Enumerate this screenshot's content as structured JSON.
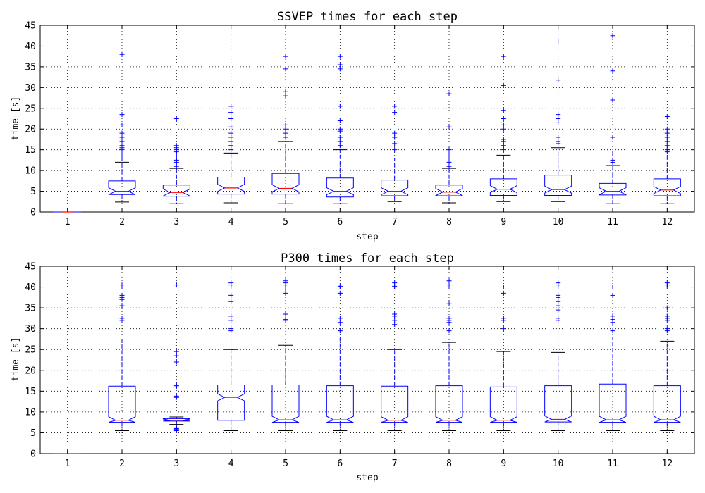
{
  "colors": {
    "box": "#0000ff",
    "median": "#ff0000",
    "whisker": "#0000ff",
    "cap": "#000000",
    "flier": "#0000ff",
    "grid": "#000000"
  },
  "chart_data": [
    {
      "type": "box",
      "title": "SSVEP times for each step",
      "xlabel": "step",
      "ylabel": "time [s]",
      "ylim": [
        0,
        45
      ],
      "yticks": [
        "0",
        "5",
        "10",
        "15",
        "20",
        "25",
        "30",
        "35",
        "40",
        "45"
      ],
      "categories": [
        "1",
        "2",
        "3",
        "4",
        "5",
        "6",
        "7",
        "8",
        "9",
        "10",
        "11",
        "12"
      ],
      "grid": true,
      "notched": true,
      "boxes": [
        {
          "q1": 0,
          "median": 0,
          "q3": 0,
          "whislo": 0,
          "whishi": 0,
          "fliers": []
        },
        {
          "q1": 4.2,
          "median": 5.0,
          "q3": 7.5,
          "whislo": 2.4,
          "whishi": 12.0,
          "fliers": [
            13,
            13.5,
            14,
            15,
            15.5,
            16,
            17,
            18,
            19,
            21,
            23.5,
            38
          ]
        },
        {
          "q1": 3.8,
          "median": 4.7,
          "q3": 6.5,
          "whislo": 2.0,
          "whishi": 10.5,
          "fliers": [
            11,
            12,
            12.5,
            13,
            14,
            14.5,
            15,
            15.5,
            16,
            22.5
          ]
        },
        {
          "q1": 4.3,
          "median": 5.8,
          "q3": 8.4,
          "whislo": 2.2,
          "whishi": 14.2,
          "fliers": [
            15,
            16,
            17,
            18,
            19,
            20.5,
            22.5,
            24,
            25.5
          ]
        },
        {
          "q1": 4.3,
          "median": 5.7,
          "q3": 9.3,
          "whislo": 2.0,
          "whishi": 17.0,
          "fliers": [
            18,
            19,
            20,
            21,
            28,
            29,
            34.5,
            37.5
          ]
        },
        {
          "q1": 3.6,
          "median": 5.0,
          "q3": 8.2,
          "whislo": 2.0,
          "whishi": 15.0,
          "fliers": [
            16,
            17,
            18,
            19.5,
            20,
            22,
            25.5,
            34.5,
            35.5,
            37.5
          ]
        },
        {
          "q1": 3.9,
          "median": 5.0,
          "q3": 7.7,
          "whislo": 2.5,
          "whishi": 13.0,
          "fliers": [
            15,
            16.5,
            18,
            19,
            24,
            25.5
          ]
        },
        {
          "q1": 3.9,
          "median": 4.8,
          "q3": 6.5,
          "whislo": 2.2,
          "whishi": 10.5,
          "fliers": [
            11,
            12,
            13,
            14,
            15,
            20.5,
            28.5
          ]
        },
        {
          "q1": 4.0,
          "median": 5.5,
          "q3": 8.0,
          "whislo": 2.5,
          "whishi": 13.7,
          "fliers": [
            15,
            16,
            17,
            17.5,
            20,
            21,
            22.5,
            24.5,
            30.5,
            37.5
          ]
        },
        {
          "q1": 4.0,
          "median": 5.4,
          "q3": 8.9,
          "whislo": 2.5,
          "whishi": 15.5,
          "fliers": [
            16.5,
            17,
            18,
            21.5,
            22.5,
            23.5,
            31.8,
            41
          ]
        },
        {
          "q1": 4.1,
          "median": 5.0,
          "q3": 6.9,
          "whislo": 2.0,
          "whishi": 11.2,
          "fliers": [
            12,
            12.5,
            14,
            18,
            27,
            34,
            42.5
          ]
        },
        {
          "q1": 3.9,
          "median": 5.3,
          "q3": 8.0,
          "whislo": 2.0,
          "whishi": 14.0,
          "fliers": [
            14.5,
            15,
            16,
            17,
            18,
            19,
            20,
            23
          ]
        }
      ]
    },
    {
      "type": "box",
      "title": "P300 times for each step",
      "xlabel": "step",
      "ylabel": "time [s]",
      "ylim": [
        0,
        45
      ],
      "yticks": [
        "0",
        "5",
        "10",
        "15",
        "20",
        "25",
        "30",
        "35",
        "40",
        "45"
      ],
      "categories": [
        "1",
        "2",
        "3",
        "4",
        "5",
        "6",
        "7",
        "8",
        "9",
        "10",
        "11",
        "12"
      ],
      "grid": true,
      "notched": true,
      "boxes": [
        {
          "q1": 0,
          "median": 0,
          "q3": 0,
          "whislo": 0,
          "whishi": 0,
          "fliers": []
        },
        {
          "q1": 7.5,
          "median": 8.0,
          "q3": 16.2,
          "whislo": 5.5,
          "whishi": 27.5,
          "fliers": [
            32,
            32.5,
            35.5,
            37,
            37.5,
            38,
            40,
            40.5
          ]
        },
        {
          "q1": 7.8,
          "median": 8.0,
          "q3": 8.4,
          "whislo": 7.0,
          "whishi": 8.8,
          "fliers": [
            5.5,
            5.8,
            6,
            6.2,
            13.5,
            13.8,
            16,
            16.3,
            16.5,
            22,
            23.5,
            24.5,
            40.5
          ]
        },
        {
          "q1": 8.0,
          "median": 13.5,
          "q3": 16.5,
          "whislo": 5.5,
          "whishi": 25.0,
          "fliers": [
            29.5,
            30,
            32,
            33,
            36.5,
            38,
            40,
            40.5,
            41
          ]
        },
        {
          "q1": 7.5,
          "median": 8.1,
          "q3": 16.5,
          "whislo": 5.5,
          "whishi": 26.0,
          "fliers": [
            32,
            32.2,
            33.5,
            38.5,
            39.5,
            40,
            40.5,
            41,
            41.5
          ]
        },
        {
          "q1": 7.5,
          "median": 8.1,
          "q3": 16.3,
          "whislo": 5.5,
          "whishi": 28.0,
          "fliers": [
            29.5,
            31.5,
            32.5,
            38.5,
            40,
            40.2
          ]
        },
        {
          "q1": 7.5,
          "median": 8.0,
          "q3": 16.2,
          "whislo": 5.5,
          "whishi": 25.0,
          "fliers": [
            31,
            32,
            33,
            33.5,
            40,
            40.2,
            41
          ]
        },
        {
          "q1": 7.5,
          "median": 8.0,
          "q3": 16.3,
          "whislo": 5.5,
          "whishi": 26.7,
          "fliers": [
            29.5,
            31.5,
            32,
            32.5,
            36,
            40,
            40.5,
            41.5
          ]
        },
        {
          "q1": 7.5,
          "median": 8.0,
          "q3": 16.0,
          "whislo": 5.5,
          "whishi": 24.5,
          "fliers": [
            30,
            32,
            32.5,
            38.5,
            40
          ]
        },
        {
          "q1": 7.6,
          "median": 8.2,
          "q3": 16.3,
          "whislo": 5.5,
          "whishi": 24.3,
          "fliers": [
            32,
            32.5,
            34.5,
            35.5,
            36.5,
            37.5,
            38,
            40,
            40.5,
            41
          ]
        },
        {
          "q1": 7.5,
          "median": 8.1,
          "q3": 16.7,
          "whislo": 5.5,
          "whishi": 28.0,
          "fliers": [
            29.5,
            31.5,
            32.2,
            33,
            38,
            40
          ]
        },
        {
          "q1": 7.5,
          "median": 8.1,
          "q3": 16.3,
          "whislo": 5.5,
          "whishi": 27.0,
          "fliers": [
            29.5,
            30,
            32,
            32.5,
            33,
            35,
            40,
            40.5,
            41
          ]
        }
      ]
    }
  ]
}
